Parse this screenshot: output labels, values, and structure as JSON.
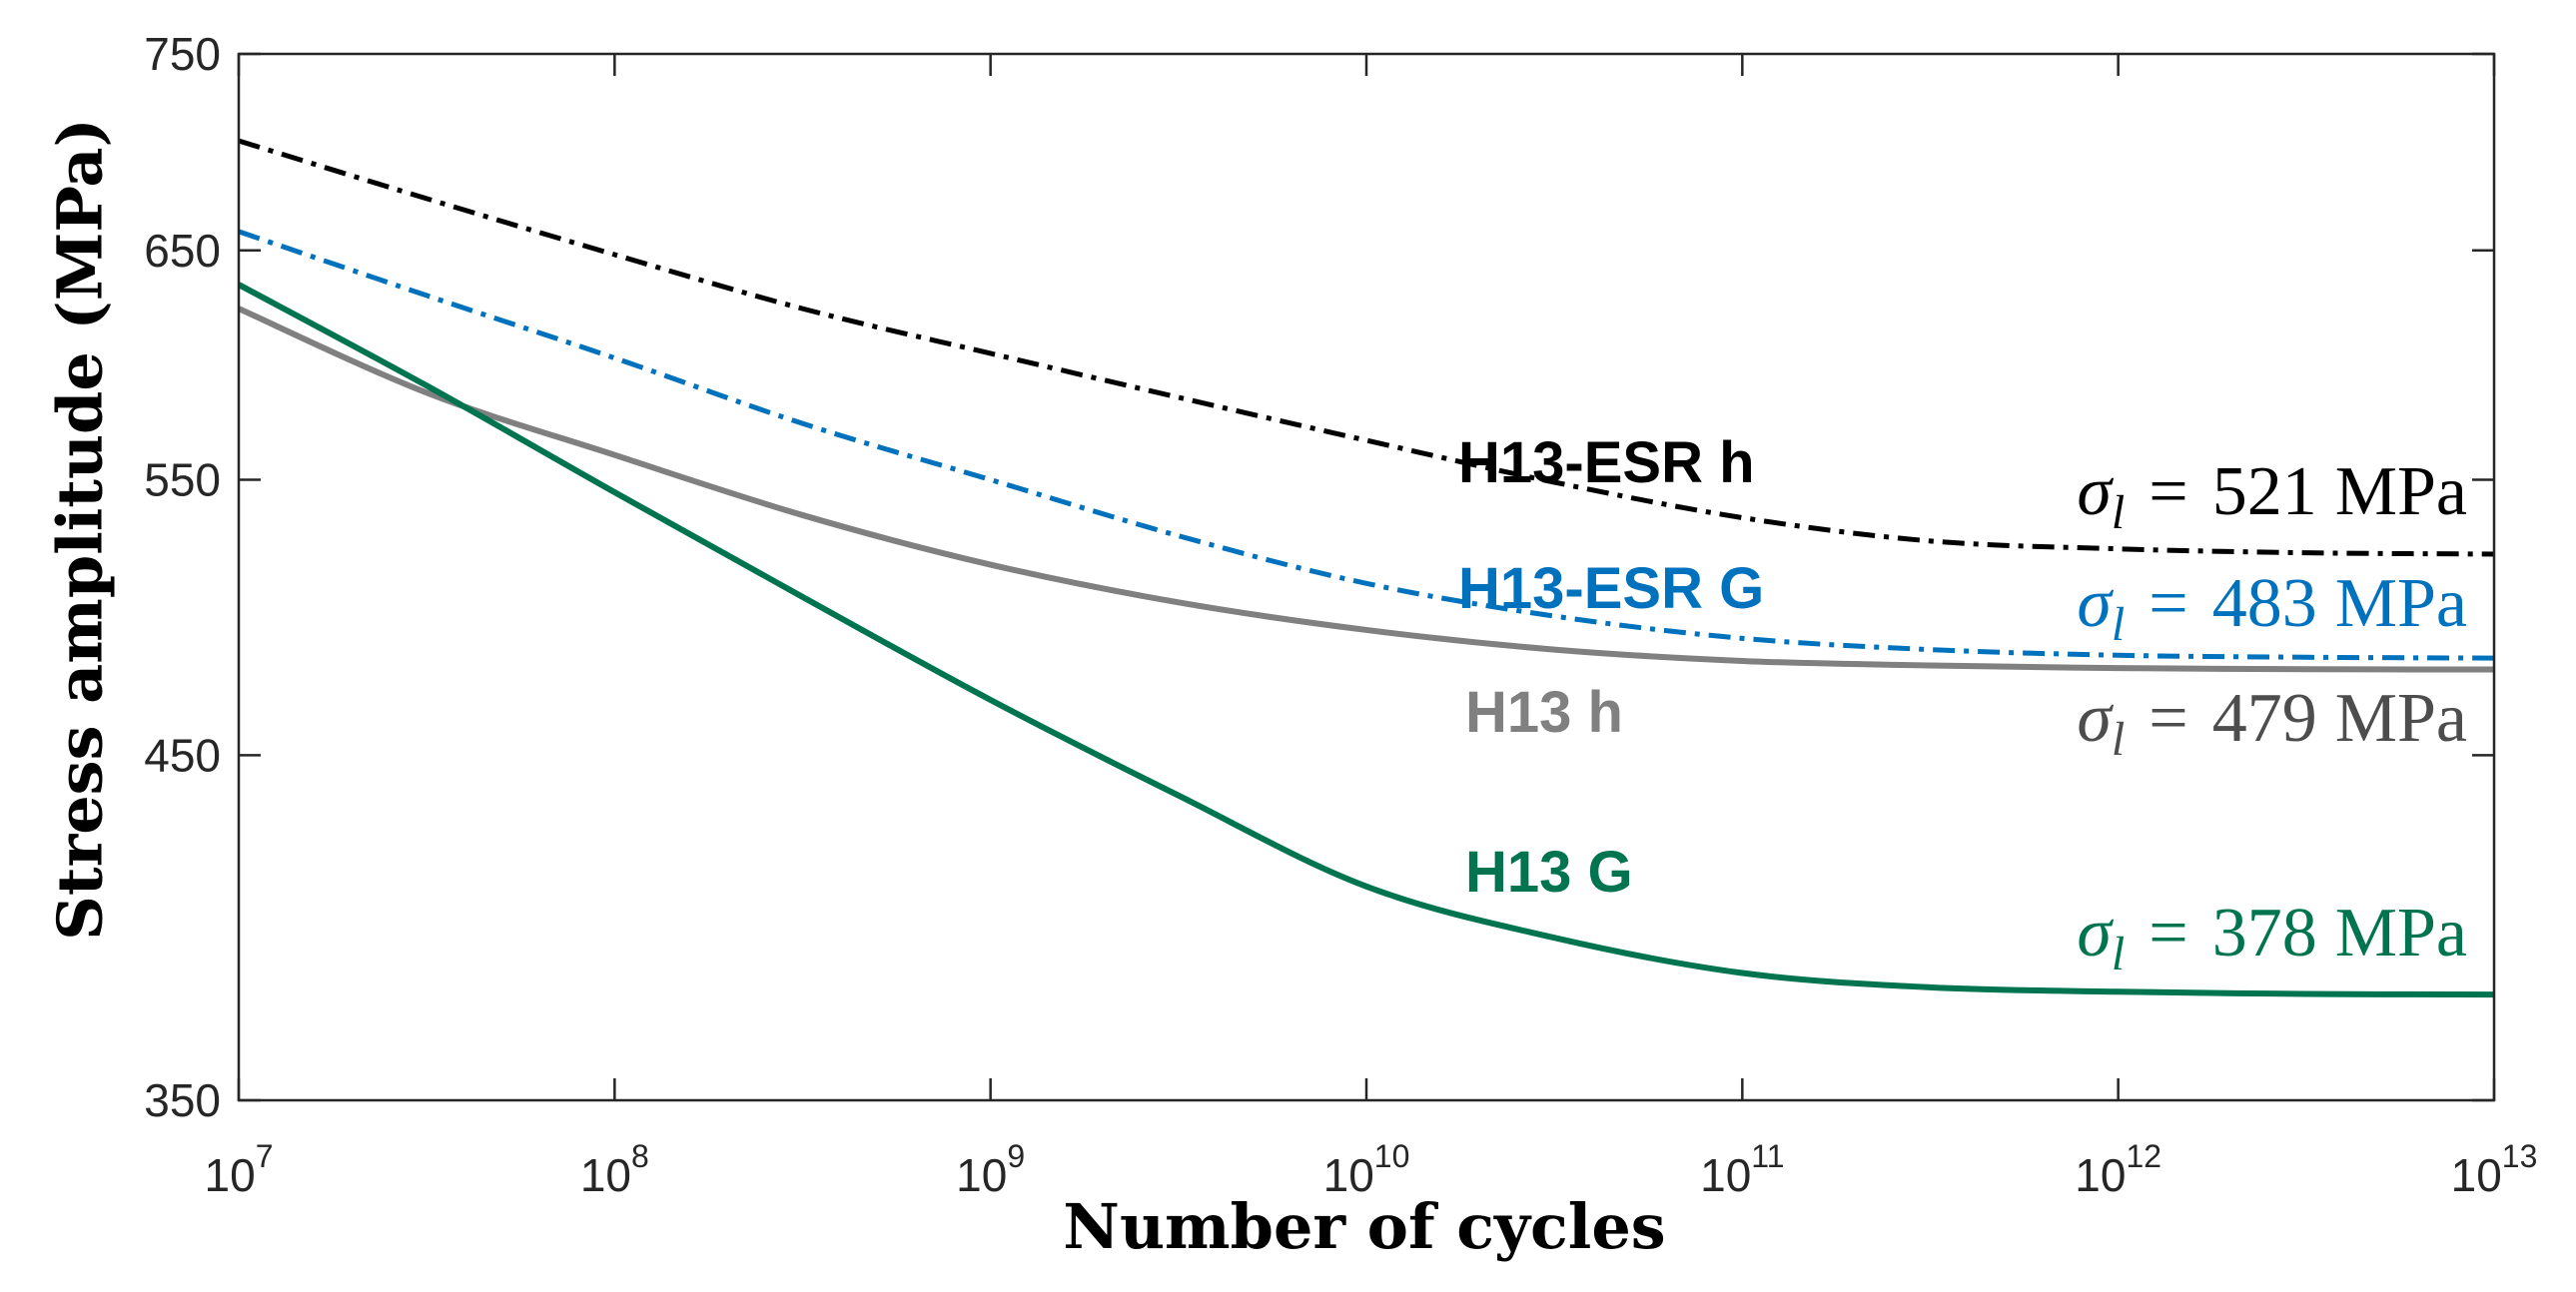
{
  "chart_data": {
    "type": "line",
    "log_x": true,
    "log_y": true,
    "title": "",
    "xlabel": "Number of cycles",
    "ylabel": "Stress amplitude (MPa)",
    "xlim": [
      10000000.0,
      10000000000000.0
    ],
    "ylim": [
      350,
      750
    ],
    "grid": false,
    "xticks": [
      {
        "value": 10000000.0,
        "base": "10",
        "exp": "7"
      },
      {
        "value": 100000000.0,
        "base": "10",
        "exp": "8"
      },
      {
        "value": 1000000000.0,
        "base": "10",
        "exp": "9"
      },
      {
        "value": 10000000000.0,
        "base": "10",
        "exp": "10"
      },
      {
        "value": 100000000000.0,
        "base": "10",
        "exp": "11"
      },
      {
        "value": 1000000000000.0,
        "base": "10",
        "exp": "12"
      },
      {
        "value": 10000000000000.0,
        "base": "10",
        "exp": "13"
      }
    ],
    "yticks": [
      750,
      650,
      550,
      450,
      350
    ],
    "x": [
      10000000.0,
      31620000.0,
      100000000.0,
      316200000.0,
      1000000000.0,
      3162000000.0,
      10000000000.0,
      31620000000.0,
      100000000000.0,
      316200000000.0,
      1000000000000.0,
      3162000000000.0,
      10000000000000.0
    ],
    "series": [
      {
        "name": "H13-ESR h",
        "color": "#000000",
        "dashed": true,
        "y": [
          704,
          675,
          648,
          623,
          603,
          584,
          566,
          549,
          535,
          526,
          523,
          521.5,
          521
        ]
      },
      {
        "name": "H13-ESR G",
        "color": "#0072BD",
        "dashed": true,
        "y": [
          659,
          629,
          601,
          573,
          550,
          528,
          510,
          498,
          490,
          486,
          484,
          483.3,
          483
        ]
      },
      {
        "name": "H13 h",
        "color": "#808080",
        "dashed": false,
        "y": [
          623,
          586,
          560,
          536,
          517,
          503,
          493,
          486,
          482,
          480.4,
          479.5,
          479.1,
          479
        ]
      },
      {
        "name": "H13 G",
        "color": "#00734F",
        "dashed": false,
        "y": [
          634,
          589,
          545,
          505,
          468.5,
          437,
          409,
          394,
          384,
          380,
          378.8,
          378.2,
          378
        ]
      }
    ],
    "annotations": [
      {
        "symbol": "σ",
        "subscript": "l",
        "equals": "=",
        "value": 521,
        "unit": "MPa",
        "color": "#000000"
      },
      {
        "symbol": "σ",
        "subscript": "l",
        "equals": "=",
        "value": 483,
        "unit": "MPa",
        "color": "#0072BD"
      },
      {
        "symbol": "σ",
        "subscript": "l",
        "equals": "=",
        "value": 479,
        "unit": "MPa",
        "color": "#4D4D4D"
      },
      {
        "symbol": "σ",
        "subscript": "l",
        "equals": "=",
        "value": 378,
        "unit": "MPa",
        "color": "#00734F"
      }
    ]
  }
}
